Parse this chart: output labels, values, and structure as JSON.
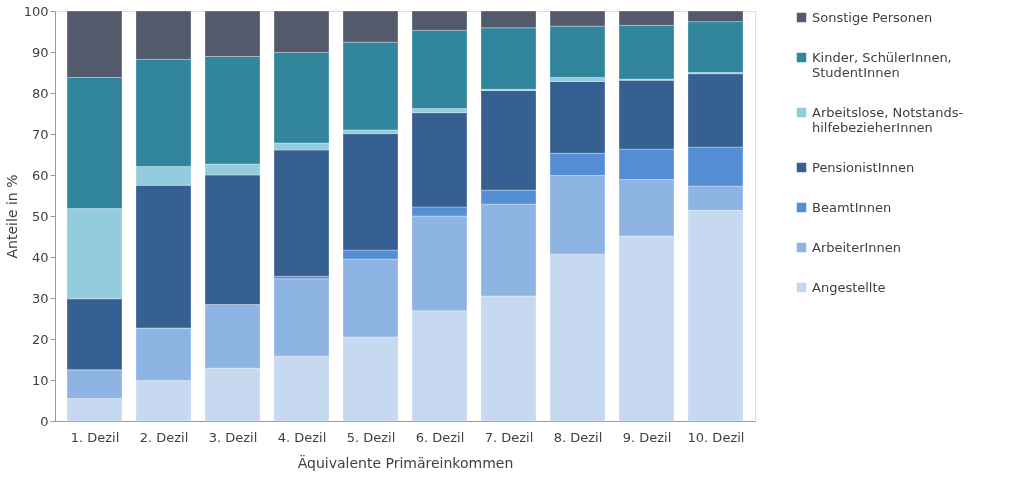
{
  "chart_data": {
    "type": "bar",
    "stacked": true,
    "xlabel": "Äquivalente Primäreinkommen",
    "ylabel": "Anteile in %",
    "categories": [
      "1. Dezil",
      "2. Dezil",
      "3. Dezil",
      "4. Dezil",
      "5. Dezil",
      "6. Dezil",
      "7. Dezil",
      "8. Dezil",
      "9. Dezil",
      "10. Dezil"
    ],
    "ylim": [
      0,
      100
    ],
    "yticks": [
      0,
      10,
      20,
      30,
      40,
      50,
      60,
      70,
      80,
      90,
      100
    ],
    "grid": false,
    "legend": "right",
    "series": [
      {
        "name": "Angestellte",
        "color": "#c6d9f0",
        "values": [
          5.5,
          9.9,
          12.9,
          15.8,
          20.5,
          26.9,
          30.5,
          40.7,
          45.1,
          51.4
        ]
      },
      {
        "name": "ArbeiterInnen",
        "color": "#8eb4e3",
        "values": [
          7.0,
          12.8,
          15.5,
          18.9,
          19.0,
          23.1,
          22.4,
          19.2,
          13.8,
          5.9
        ]
      },
      {
        "name": "BeamtInnen",
        "color": "#558ed5",
        "values": [
          0,
          0,
          0,
          0.6,
          2.2,
          2.2,
          3.4,
          5.4,
          7.4,
          9.5
        ]
      },
      {
        "name": "PensionistInnen",
        "color": "#366092",
        "values": [
          17.3,
          34.8,
          31.6,
          30.8,
          28.4,
          23.0,
          24.3,
          17.5,
          16.8,
          17.9
        ]
      },
      {
        "name": "Arbeitslose, Notstands-\nhilfebezieherInnen",
        "color": "#93cddd",
        "values": [
          22.0,
          4.6,
          2.7,
          1.7,
          0.9,
          1.0,
          0.3,
          1.0,
          0.3,
          0.3
        ]
      },
      {
        "name": "Kinder, SchülerInnen,\nStudentInnen",
        "color": "#31859c",
        "values": [
          32.0,
          26.1,
          26.2,
          22.1,
          21.4,
          19.1,
          15.0,
          12.5,
          13.1,
          12.4
        ]
      },
      {
        "name": "Sonstige Personen",
        "color": "#525a6b",
        "values": [
          16.2,
          11.8,
          11.1,
          10.1,
          7.6,
          4.7,
          4.1,
          3.7,
          3.5,
          2.6
        ]
      }
    ]
  }
}
